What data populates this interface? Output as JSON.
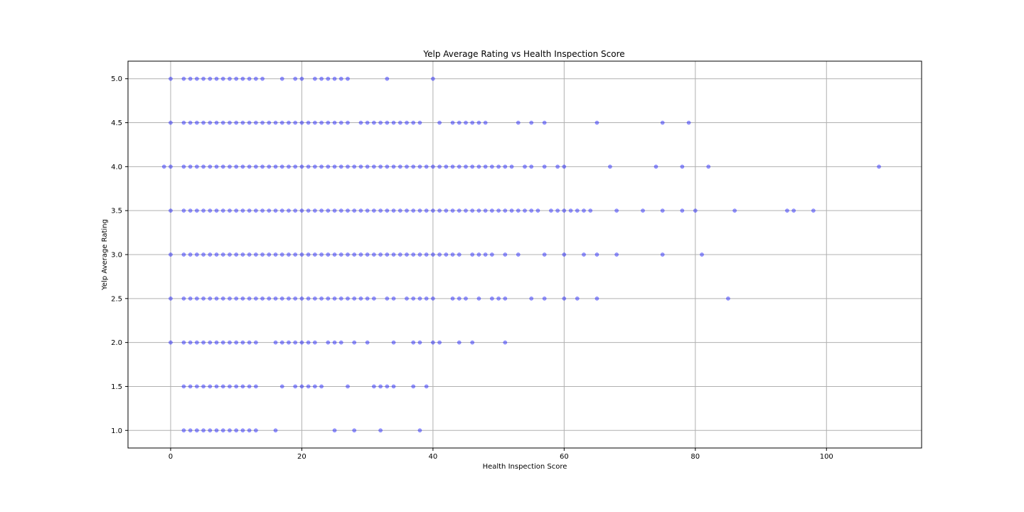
{
  "chart_data": {
    "type": "scatter",
    "title": "Yelp Average Rating vs Health Inspection Score",
    "xlabel": "Health Inspection Score",
    "ylabel": "Yelp Average Rating",
    "xlim": [
      -6.5,
      114.5
    ],
    "ylim": [
      0.8,
      5.2
    ],
    "xticks": [
      0,
      20,
      40,
      60,
      80,
      100
    ],
    "yticks": [
      1.0,
      1.5,
      2.0,
      2.5,
      3.0,
      3.5,
      4.0,
      4.5,
      5.0
    ],
    "xtick_labels": [
      "0",
      "20",
      "40",
      "60",
      "80",
      "100"
    ],
    "ytick_labels": [
      "1.0",
      "1.5",
      "2.0",
      "2.5",
      "3.0",
      "3.5",
      "4.0",
      "4.5",
      "5.0"
    ],
    "grid": true,
    "marker_color": "#0000ff",
    "marker_alpha": 0.4,
    "series": [
      {
        "y": 5.0,
        "x": [
          0,
          2,
          3,
          4,
          5,
          6,
          7,
          8,
          9,
          10,
          11,
          12,
          13,
          14,
          17,
          19,
          20,
          22,
          23,
          24,
          25,
          26,
          27,
          33,
          40
        ]
      },
      {
        "y": 4.5,
        "x": [
          0,
          2,
          3,
          4,
          5,
          6,
          7,
          8,
          9,
          10,
          11,
          12,
          13,
          14,
          15,
          16,
          17,
          18,
          19,
          20,
          21,
          22,
          23,
          24,
          25,
          26,
          27,
          29,
          30,
          31,
          32,
          33,
          34,
          35,
          36,
          37,
          38,
          41,
          43,
          44,
          45,
          46,
          47,
          48,
          53,
          55,
          57,
          65,
          75,
          79
        ]
      },
      {
        "y": 4.0,
        "x": [
          -1,
          0,
          2,
          3,
          4,
          5,
          6,
          7,
          8,
          9,
          10,
          11,
          12,
          13,
          14,
          15,
          16,
          17,
          18,
          19,
          20,
          21,
          22,
          23,
          24,
          25,
          26,
          27,
          28,
          29,
          30,
          31,
          32,
          33,
          34,
          35,
          36,
          37,
          38,
          39,
          40,
          41,
          42,
          43,
          44,
          45,
          46,
          47,
          48,
          49,
          50,
          51,
          52,
          54,
          55,
          57,
          59,
          60,
          67,
          74,
          78,
          82,
          108
        ]
      },
      {
        "y": 3.5,
        "x": [
          0,
          2,
          3,
          4,
          5,
          6,
          7,
          8,
          9,
          10,
          11,
          12,
          13,
          14,
          15,
          16,
          17,
          18,
          19,
          20,
          21,
          22,
          23,
          24,
          25,
          26,
          27,
          28,
          29,
          30,
          31,
          32,
          33,
          34,
          35,
          36,
          37,
          38,
          39,
          40,
          41,
          42,
          43,
          44,
          45,
          46,
          47,
          48,
          49,
          50,
          51,
          52,
          53,
          54,
          55,
          56,
          58,
          59,
          60,
          61,
          62,
          63,
          64,
          68,
          72,
          75,
          78,
          80,
          86,
          94,
          95,
          98
        ]
      },
      {
        "y": 3.0,
        "x": [
          0,
          2,
          3,
          4,
          5,
          6,
          7,
          8,
          9,
          10,
          11,
          12,
          13,
          14,
          15,
          16,
          17,
          18,
          19,
          20,
          21,
          22,
          23,
          24,
          25,
          26,
          27,
          28,
          29,
          30,
          31,
          32,
          33,
          34,
          35,
          36,
          37,
          38,
          39,
          40,
          41,
          42,
          43,
          44,
          46,
          47,
          48,
          49,
          51,
          53,
          57,
          60,
          63,
          65,
          68,
          75,
          81
        ]
      },
      {
        "y": 2.5,
        "x": [
          0,
          2,
          3,
          4,
          5,
          6,
          7,
          8,
          9,
          10,
          11,
          12,
          13,
          14,
          15,
          16,
          17,
          18,
          19,
          20,
          21,
          22,
          23,
          24,
          25,
          26,
          27,
          28,
          29,
          30,
          31,
          33,
          34,
          36,
          37,
          38,
          39,
          40,
          43,
          44,
          45,
          47,
          49,
          50,
          51,
          55,
          57,
          60,
          62,
          65,
          85
        ]
      },
      {
        "y": 2.0,
        "x": [
          0,
          2,
          3,
          4,
          5,
          6,
          7,
          8,
          9,
          10,
          11,
          12,
          13,
          16,
          17,
          18,
          19,
          20,
          21,
          22,
          24,
          25,
          26,
          28,
          30,
          34,
          37,
          38,
          40,
          41,
          44,
          46,
          51
        ]
      },
      {
        "y": 1.5,
        "x": [
          2,
          3,
          4,
          5,
          6,
          7,
          8,
          9,
          10,
          11,
          12,
          13,
          17,
          19,
          20,
          21,
          22,
          23,
          27,
          31,
          32,
          33,
          34,
          37,
          39
        ]
      },
      {
        "y": 1.0,
        "x": [
          2,
          3,
          4,
          5,
          6,
          7,
          8,
          9,
          10,
          11,
          12,
          13,
          16,
          25,
          28,
          32,
          38
        ]
      }
    ]
  }
}
